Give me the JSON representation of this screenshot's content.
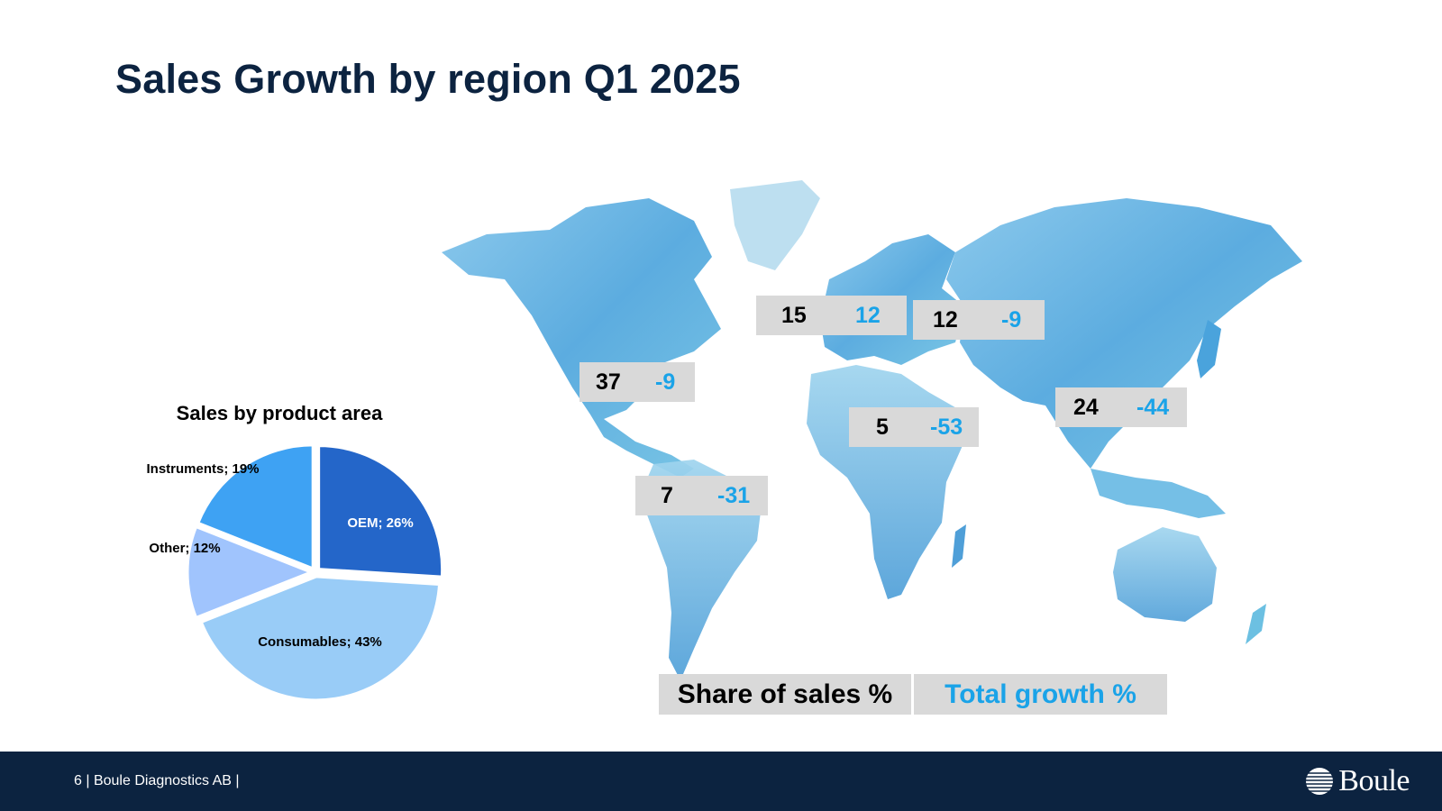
{
  "title": "Sales Growth by region Q1 2025",
  "colors": {
    "navy": "#0c2340",
    "growth": "#1aa3e8",
    "box": "#d9d9d9"
  },
  "regions": [
    {
      "name": "north-america",
      "share": "37",
      "growth": "-9"
    },
    {
      "name": "nordics",
      "share": "15",
      "growth": "12"
    },
    {
      "name": "europe",
      "share": "12",
      "growth": "-9"
    },
    {
      "name": "middle-east-africa",
      "share": "5",
      "growth": "-53"
    },
    {
      "name": "asia",
      "share": "24",
      "growth": "-44"
    },
    {
      "name": "latin-america",
      "share": "7",
      "growth": "-31"
    }
  ],
  "legend": {
    "share_label": "Share of sales %",
    "growth_label": "Total growth %"
  },
  "chart_data": {
    "type": "pie",
    "title": "Sales by product area",
    "slices": [
      {
        "label": "OEM; 26%",
        "value": 26,
        "color": "#2466c9"
      },
      {
        "label": "Consumables; 43%",
        "value": 43,
        "color": "#99ccf7"
      },
      {
        "label": "Other; 12%",
        "value": 12,
        "color": "#a0c4fd"
      },
      {
        "label": "Instruments; 19%",
        "value": 19,
        "color": "#3ea2f3"
      }
    ]
  },
  "footer": {
    "page": "6",
    "company": "Boule Diagnostics AB",
    "logo_text": "Boule"
  }
}
